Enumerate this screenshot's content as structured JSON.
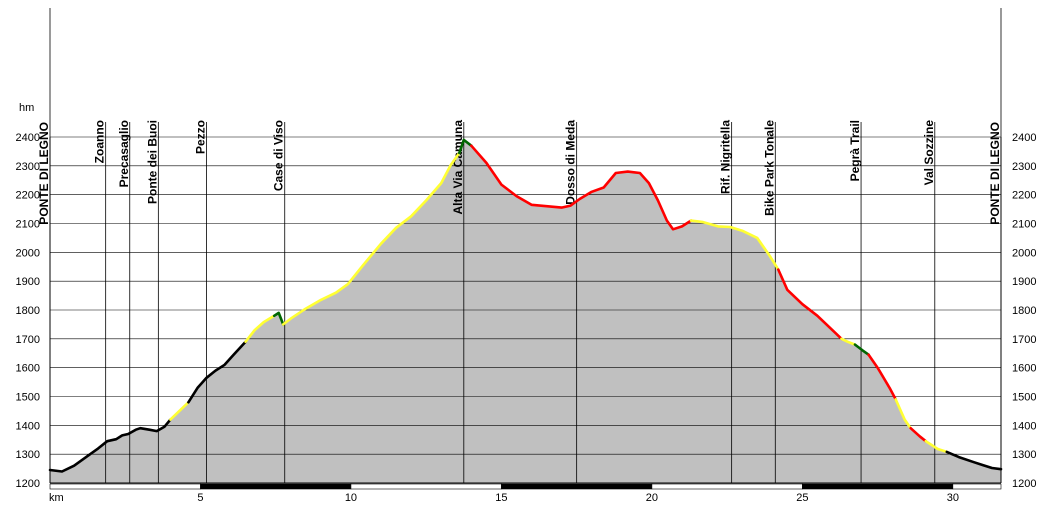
{
  "chart_data": {
    "type": "area",
    "title": "",
    "xlabel": "km",
    "ylabel": "hm",
    "xlim": [
      0,
      31.6
    ],
    "ylim": [
      1200,
      2400
    ],
    "x_ticks": [
      "5",
      "10",
      "15",
      "20",
      "25",
      "30"
    ],
    "y_ticks": [
      "1200",
      "1300",
      "1400",
      "1500",
      "1600",
      "1700",
      "1800",
      "1900",
      "2000",
      "2100",
      "2200",
      "2300",
      "2400"
    ],
    "grid": true,
    "colors": {
      "fill": "#c0c0c0",
      "flat": "#000000",
      "easy": "#ffff33",
      "medium": "#ff0000",
      "steep": "#006600",
      "grid": "#000000"
    },
    "waypoints": [
      {
        "km": 0.0,
        "label": "PONTE DI LEGNO"
      },
      {
        "km": 1.85,
        "label": "Zoanno"
      },
      {
        "km": 2.65,
        "label": "Precasaglio"
      },
      {
        "km": 3.6,
        "label": "Ponte dei Buoi"
      },
      {
        "km": 5.2,
        "label": "Pezzo"
      },
      {
        "km": 7.8,
        "label": "Case di Viso"
      },
      {
        "km": 13.75,
        "label": "Alta Via Camuna"
      },
      {
        "km": 17.5,
        "label": "Dosso di Meda"
      },
      {
        "km": 22.65,
        "label": "Rif. Nigritella"
      },
      {
        "km": 24.1,
        "label": "Bike Park Tonale"
      },
      {
        "km": 26.95,
        "label": "Pegrà Trail"
      },
      {
        "km": 29.4,
        "label": "Val Sozzine"
      },
      {
        "km": 31.6,
        "label": "PONTE DI LEGNO"
      }
    ],
    "series": [
      {
        "color_key": "flat",
        "points": [
          [
            0,
            1245
          ],
          [
            0.4,
            1240
          ],
          [
            0.8,
            1260
          ],
          [
            1.2,
            1290
          ],
          [
            1.6,
            1320
          ],
          [
            1.9,
            1345
          ],
          [
            2.2,
            1352
          ],
          [
            2.4,
            1365
          ],
          [
            2.6,
            1370
          ],
          [
            2.85,
            1385
          ],
          [
            3.0,
            1390
          ],
          [
            3.3,
            1385
          ],
          [
            3.55,
            1380
          ],
          [
            3.8,
            1395
          ],
          [
            4.0,
            1420
          ]
        ]
      },
      {
        "color_key": "easy",
        "points": [
          [
            4.0,
            1420
          ],
          [
            4.3,
            1450
          ],
          [
            4.6,
            1480
          ]
        ]
      },
      {
        "color_key": "flat",
        "points": [
          [
            4.6,
            1480
          ],
          [
            4.9,
            1530
          ],
          [
            5.2,
            1565
          ],
          [
            5.5,
            1590
          ],
          [
            5.8,
            1610
          ],
          [
            6.1,
            1645
          ],
          [
            6.5,
            1690
          ]
        ]
      },
      {
        "color_key": "easy",
        "points": [
          [
            6.5,
            1690
          ],
          [
            6.8,
            1730
          ],
          [
            7.1,
            1758
          ],
          [
            7.45,
            1780
          ]
        ]
      },
      {
        "color_key": "steep",
        "points": [
          [
            7.45,
            1780
          ],
          [
            7.6,
            1790
          ],
          [
            7.75,
            1750
          ]
        ]
      },
      {
        "color_key": "easy",
        "points": [
          [
            7.75,
            1750
          ],
          [
            8.0,
            1770
          ],
          [
            8.5,
            1805
          ],
          [
            9.0,
            1835
          ],
          [
            9.5,
            1860
          ],
          [
            9.9,
            1890
          ],
          [
            10.4,
            1955
          ],
          [
            11.0,
            2030
          ],
          [
            11.5,
            2085
          ],
          [
            12.0,
            2125
          ],
          [
            12.5,
            2180
          ],
          [
            13.0,
            2240
          ],
          [
            13.3,
            2300
          ],
          [
            13.6,
            2345
          ]
        ]
      },
      {
        "color_key": "steep",
        "points": [
          [
            13.6,
            2345
          ],
          [
            13.75,
            2390
          ],
          [
            14.0,
            2370
          ]
        ]
      },
      {
        "color_key": "medium",
        "points": [
          [
            14.0,
            2370
          ],
          [
            14.5,
            2310
          ],
          [
            15.0,
            2235
          ],
          [
            15.5,
            2195
          ],
          [
            16.0,
            2165
          ],
          [
            16.5,
            2160
          ],
          [
            17.0,
            2155
          ],
          [
            17.3,
            2162
          ],
          [
            17.6,
            2185
          ],
          [
            18.0,
            2210
          ],
          [
            18.4,
            2225
          ],
          [
            18.8,
            2275
          ],
          [
            19.2,
            2280
          ],
          [
            19.6,
            2275
          ],
          [
            19.9,
            2240
          ],
          [
            20.2,
            2180
          ],
          [
            20.5,
            2110
          ],
          [
            20.7,
            2080
          ],
          [
            21.0,
            2090
          ],
          [
            21.3,
            2110
          ]
        ]
      },
      {
        "color_key": "easy",
        "points": [
          [
            21.3,
            2110
          ],
          [
            21.7,
            2105
          ],
          [
            22.2,
            2090
          ],
          [
            22.6,
            2088
          ],
          [
            23.0,
            2075
          ],
          [
            23.5,
            2050
          ],
          [
            23.9,
            1990
          ],
          [
            24.2,
            1940
          ]
        ]
      },
      {
        "color_key": "medium",
        "points": [
          [
            24.2,
            1940
          ],
          [
            24.5,
            1870
          ],
          [
            25.0,
            1820
          ],
          [
            25.5,
            1780
          ],
          [
            26.0,
            1730
          ],
          [
            26.3,
            1700
          ]
        ]
      },
      {
        "color_key": "easy",
        "points": [
          [
            26.3,
            1700
          ],
          [
            26.5,
            1690
          ],
          [
            26.75,
            1680
          ]
        ]
      },
      {
        "color_key": "steep",
        "points": [
          [
            26.75,
            1680
          ],
          [
            27.0,
            1660
          ],
          [
            27.2,
            1645
          ]
        ]
      },
      {
        "color_key": "medium",
        "points": [
          [
            27.2,
            1645
          ],
          [
            27.5,
            1600
          ],
          [
            27.9,
            1530
          ],
          [
            28.1,
            1490
          ]
        ]
      },
      {
        "color_key": "easy",
        "points": [
          [
            28.1,
            1490
          ],
          [
            28.4,
            1420
          ],
          [
            28.6,
            1390
          ]
        ]
      },
      {
        "color_key": "medium",
        "points": [
          [
            28.6,
            1390
          ],
          [
            28.9,
            1362
          ],
          [
            29.1,
            1345
          ]
        ]
      },
      {
        "color_key": "easy",
        "points": [
          [
            29.1,
            1345
          ],
          [
            29.5,
            1318
          ],
          [
            29.8,
            1308
          ]
        ]
      },
      {
        "color_key": "flat",
        "points": [
          [
            29.8,
            1308
          ],
          [
            30.2,
            1290
          ],
          [
            30.7,
            1272
          ],
          [
            31.0,
            1262
          ],
          [
            31.3,
            1252
          ],
          [
            31.6,
            1248
          ]
        ]
      }
    ]
  }
}
